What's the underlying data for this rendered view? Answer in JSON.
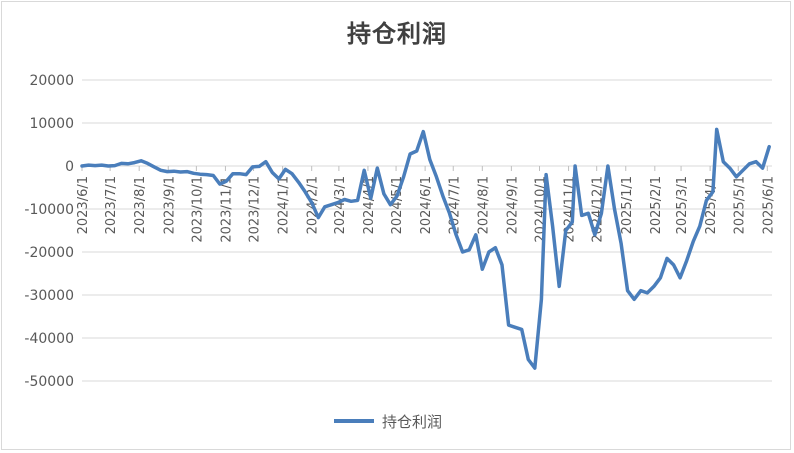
{
  "chart_data": {
    "type": "line",
    "title": "持仓利润",
    "xlabel": "",
    "ylabel": "",
    "ylim": [
      -50000,
      20000
    ],
    "yticks": [
      20000,
      10000,
      0,
      -10000,
      -20000,
      -30000,
      -40000,
      -50000
    ],
    "xtick_labels": [
      "2023/6/1",
      "2023/7/1",
      "2023/8/1",
      "2023/9/1",
      "2023/10/1",
      "2023/11/1",
      "2023/12/1",
      "2024/1/1",
      "2024/2/1",
      "2024/3/1",
      "2024/4/1",
      "2024/5/1",
      "2024/6/1",
      "2024/7/1",
      "2024/8/1",
      "2024/9/1",
      "2024/10/1",
      "2024/11/1",
      "2024/12/1",
      "2025/1/1",
      "2025/2/1",
      "2025/3/1",
      "2025/4/1",
      "2025/5/1",
      "2025/6/1"
    ],
    "x_range": [
      "2023/6/1",
      "2025/6/6"
    ],
    "grid": true,
    "legend_position": "bottom",
    "series": [
      {
        "name": "持仓利润",
        "color": "#4a7ebb",
        "points": [
          [
            "2023/6/1",
            0
          ],
          [
            "2023/6/8",
            200
          ],
          [
            "2023/6/15",
            100
          ],
          [
            "2023/6/22",
            200
          ],
          [
            "2023/6/29",
            0
          ],
          [
            "2023/7/6",
            100
          ],
          [
            "2023/7/13",
            600
          ],
          [
            "2023/7/20",
            500
          ],
          [
            "2023/7/27",
            800
          ],
          [
            "2023/8/3",
            1200
          ],
          [
            "2023/8/10",
            600
          ],
          [
            "2023/8/17",
            -200
          ],
          [
            "2023/8/24",
            -1000
          ],
          [
            "2023/8/31",
            -1300
          ],
          [
            "2023/9/7",
            -1200
          ],
          [
            "2023/9/14",
            -1400
          ],
          [
            "2023/9/21",
            -1300
          ],
          [
            "2023/9/28",
            -1700
          ],
          [
            "2023/10/5",
            -1900
          ],
          [
            "2023/10/12",
            -2000
          ],
          [
            "2023/10/19",
            -2200
          ],
          [
            "2023/10/26",
            -4200
          ],
          [
            "2023/11/2",
            -3500
          ],
          [
            "2023/11/9",
            -1800
          ],
          [
            "2023/11/16",
            -1800
          ],
          [
            "2023/11/23",
            -2000
          ],
          [
            "2023/11/30",
            -200
          ],
          [
            "2023/12/7",
            -100
          ],
          [
            "2023/12/14",
            1000
          ],
          [
            "2023/12/21",
            -1500
          ],
          [
            "2023/12/28",
            -3000
          ],
          [
            "2024/1/4",
            -800
          ],
          [
            "2024/1/11",
            -1800
          ],
          [
            "2024/1/18",
            -3800
          ],
          [
            "2024/1/25",
            -6000
          ],
          [
            "2024/2/1",
            -8500
          ],
          [
            "2024/2/8",
            -12000
          ],
          [
            "2024/2/15",
            -9500
          ],
          [
            "2024/2/22",
            -9000
          ],
          [
            "2024/2/29",
            -8500
          ],
          [
            "2024/3/7",
            -7800
          ],
          [
            "2024/3/14",
            -8200
          ],
          [
            "2024/3/21",
            -8000
          ],
          [
            "2024/3/28",
            -1000
          ],
          [
            "2024/4/4",
            -7500
          ],
          [
            "2024/4/11",
            -500
          ],
          [
            "2024/4/18",
            -6500
          ],
          [
            "2024/4/25",
            -9000
          ],
          [
            "2024/5/2",
            -7000
          ],
          [
            "2024/5/9",
            -2500
          ],
          [
            "2024/5/16",
            2800
          ],
          [
            "2024/5/23",
            3500
          ],
          [
            "2024/5/30",
            8000
          ],
          [
            "2024/6/6",
            1500
          ],
          [
            "2024/6/13",
            -2500
          ],
          [
            "2024/6/20",
            -7000
          ],
          [
            "2024/6/27",
            -11000
          ],
          [
            "2024/7/4",
            -16000
          ],
          [
            "2024/7/11",
            -20000
          ],
          [
            "2024/7/18",
            -19500
          ],
          [
            "2024/7/25",
            -16000
          ],
          [
            "2024/8/1",
            -24000
          ],
          [
            "2024/8/8",
            -20000
          ],
          [
            "2024/8/15",
            -19000
          ],
          [
            "2024/8/22",
            -23000
          ],
          [
            "2024/8/29",
            -37000
          ],
          [
            "2024/9/5",
            -37500
          ],
          [
            "2024/9/12",
            -38000
          ],
          [
            "2024/9/19",
            -45000
          ],
          [
            "2024/9/26",
            -47000
          ],
          [
            "2024/10/3",
            -31000
          ],
          [
            "2024/10/8",
            -2000
          ],
          [
            "2024/10/15",
            -14000
          ],
          [
            "2024/10/22",
            -28000
          ],
          [
            "2024/10/29",
            -15000
          ],
          [
            "2024/11/5",
            -13000
          ],
          [
            "2024/11/8",
            0
          ],
          [
            "2024/11/15",
            -11500
          ],
          [
            "2024/11/22",
            -11000
          ],
          [
            "2024/11/29",
            -16000
          ],
          [
            "2024/12/6",
            -11000
          ],
          [
            "2024/12/13",
            0
          ],
          [
            "2024/12/20",
            -10000
          ],
          [
            "2024/12/27",
            -18000
          ],
          [
            "2025/1/3",
            -29000
          ],
          [
            "2025/1/10",
            -31000
          ],
          [
            "2025/1/17",
            -29000
          ],
          [
            "2025/1/24",
            -29500
          ],
          [
            "2025/1/31",
            -28000
          ],
          [
            "2025/2/7",
            -26000
          ],
          [
            "2025/2/14",
            -21500
          ],
          [
            "2025/2/21",
            -23000
          ],
          [
            "2025/2/28",
            -26000
          ],
          [
            "2025/3/7",
            -22000
          ],
          [
            "2025/3/14",
            -17500
          ],
          [
            "2025/3/21",
            -14000
          ],
          [
            "2025/3/28",
            -8000
          ],
          [
            "2025/4/4",
            -6000
          ],
          [
            "2025/4/8",
            8500
          ],
          [
            "2025/4/15",
            1000
          ],
          [
            "2025/4/22",
            -500
          ],
          [
            "2025/4/29",
            -2500
          ],
          [
            "2025/5/6",
            -1000
          ],
          [
            "2025/5/13",
            500
          ],
          [
            "2025/5/20",
            1000
          ],
          [
            "2025/5/27",
            -500
          ],
          [
            "2025/6/3",
            4500
          ]
        ]
      }
    ]
  }
}
